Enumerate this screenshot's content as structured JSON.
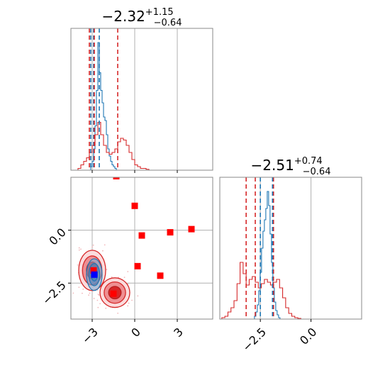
{
  "chart_data": [
    {
      "type": "histogram",
      "panel": "top-left",
      "title": {
        "median": "−2.32",
        "plus": "+1.15",
        "minus": "−0.64"
      },
      "xlim": [
        -4.5,
        5.5
      ],
      "grid": true,
      "xticks": [
        -3,
        0,
        3
      ],
      "series": [
        {
          "color": "#1f77b4",
          "bin_start": -3.8,
          "bin_width": 0.1,
          "heights": [
            0,
            0,
            0,
            0,
            0,
            0,
            0,
            0.02,
            0.05,
            0.12,
            0.25,
            0.45,
            0.72,
            0.55,
            0.45,
            0.38,
            0.3,
            0.28,
            0.2,
            0.12,
            0.08,
            0.05,
            0.03,
            0.02,
            0.01,
            0
          ]
        },
        {
          "color": "#d62728",
          "bin_start": -4.0,
          "bin_width": 0.2,
          "heights": [
            0.01,
            0.03,
            0.05,
            0.07,
            0.1,
            0.14,
            0.2,
            0.27,
            0.2,
            0.14,
            0.1,
            0.09,
            0.1,
            0.12,
            0.16,
            0.18,
            0.17,
            0.14,
            0.1,
            0.06,
            0.03,
            0.02,
            0.01,
            0.01,
            0.005,
            0
          ]
        }
      ],
      "quantile_lines": [
        {
          "x": -3.1,
          "color": "#1f77b4"
        },
        {
          "x": -2.9,
          "color": "#1f77b4"
        },
        {
          "x": -2.5,
          "color": "#1f77b4"
        },
        {
          "x": -3.2,
          "color": "#d62728"
        },
        {
          "x": -2.85,
          "color": "#d62728"
        },
        {
          "x": -1.2,
          "color": "#d62728"
        }
      ]
    },
    {
      "type": "histogram",
      "panel": "bottom-right",
      "title": {
        "median": "−2.51",
        "plus": "+0.74",
        "minus": "−0.64"
      },
      "xlim": [
        -4.5,
        2.5
      ],
      "grid": true,
      "xticks": [
        -2.5,
        0.0
      ],
      "xtick_labels": [
        "−2.5",
        "0.0"
      ],
      "series": [
        {
          "color": "#1f77b4",
          "bin_start": -3.0,
          "bin_width": 0.07,
          "heights": [
            0,
            0,
            0,
            0.02,
            0.05,
            0.1,
            0.2,
            0.33,
            0.5,
            0.62,
            0.7,
            0.78,
            0.9,
            0.8,
            0.6,
            0.4,
            0.22,
            0.12,
            0.06,
            0.03,
            0.01,
            0
          ]
        },
        {
          "color": "#d62728",
          "bin_start": -4.4,
          "bin_width": 0.15,
          "heights": [
            0.01,
            0.02,
            0.05,
            0.08,
            0.13,
            0.25,
            0.4,
            0.32,
            0.24,
            0.28,
            0.3,
            0.26,
            0.22,
            0.25,
            0.28,
            0.26,
            0.24,
            0.26,
            0.28,
            0.22,
            0.15,
            0.08,
            0.04,
            0.02,
            0.01,
            0.005,
            0
          ]
        }
      ],
      "quantile_lines": [
        {
          "x": -3.2,
          "color": "#d62728"
        },
        {
          "x": -2.75,
          "color": "#d62728"
        },
        {
          "x": -1.85,
          "color": "#d62728"
        },
        {
          "x": -2.5,
          "color": "#1f77b4"
        },
        {
          "x": -1.9,
          "color": "#1f77b4"
        }
      ]
    },
    {
      "type": "scatter",
      "panel": "bottom-left",
      "xlim": [
        -4.5,
        5.5
      ],
      "ylim": [
        -4.2,
        2.5
      ],
      "grid": true,
      "xticks": [
        -3,
        0,
        3
      ],
      "xtick_labels": [
        "−3",
        "0",
        "3"
      ],
      "yticks": [
        0.0,
        -2.5
      ],
      "ytick_labels": [
        "0.0",
        "−2.5"
      ],
      "red_contours": [
        {
          "cx": -3.0,
          "cy": -1.9,
          "rx": 0.95,
          "ry": 0.95
        },
        {
          "cx": -1.4,
          "cy": -2.95,
          "rx": 1.05,
          "ry": 0.7
        }
      ],
      "blue_contour": {
        "cx": -2.85,
        "cy": -2.1,
        "rx": 0.55,
        "ry": 0.75
      },
      "red_squares": [
        [
          -1.3,
          2.55
        ],
        [
          0.0,
          1.15
        ],
        [
          0.5,
          -0.25
        ],
        [
          2.5,
          -0.1
        ],
        [
          4.0,
          0.05
        ],
        [
          0.2,
          -1.7
        ],
        [
          1.8,
          -2.15
        ],
        [
          -1.5,
          -3.0
        ],
        [
          -2.9,
          -1.9
        ]
      ],
      "blue_squares": [
        [
          -2.85,
          -2.1
        ]
      ]
    }
  ]
}
